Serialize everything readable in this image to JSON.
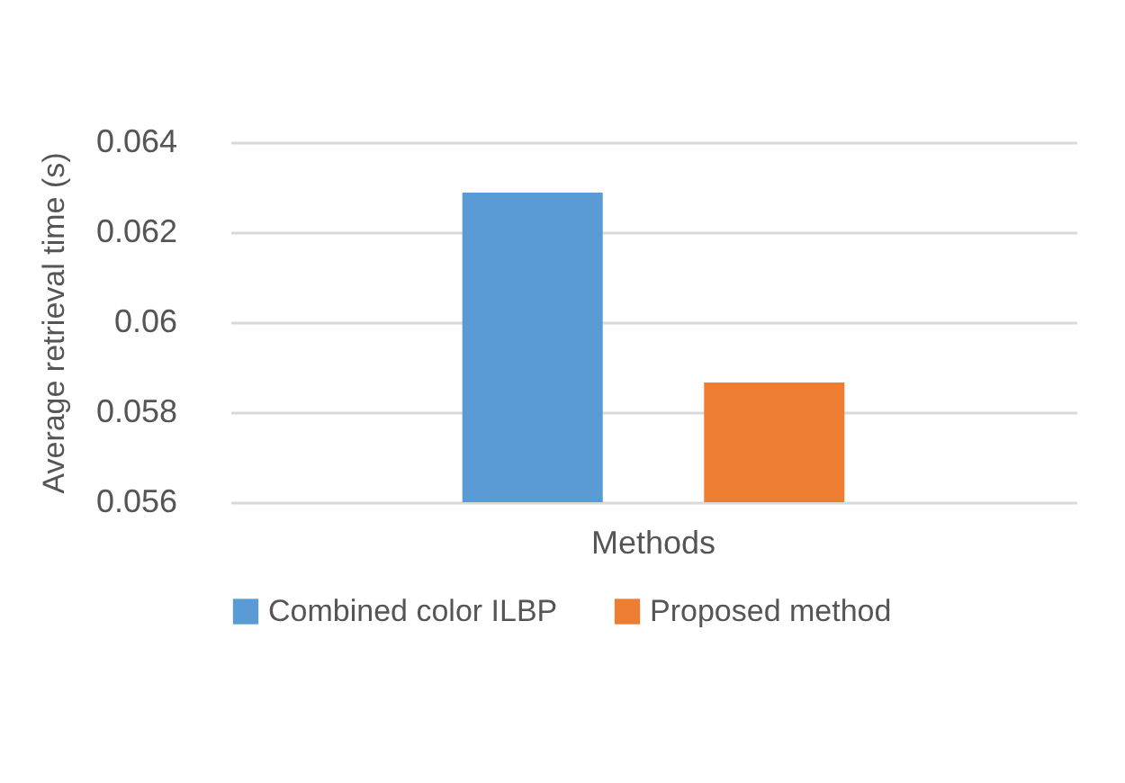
{
  "chart_data": {
    "type": "bar",
    "categories": [
      "Methods"
    ],
    "ylabel": "Average retrieval time (s)",
    "series": [
      {
        "name": "Combined color ILBP",
        "color": "#5b9bd5",
        "values": [
          0.06288
        ]
      },
      {
        "name": "Proposed method",
        "color": "#ed7d31",
        "values": [
          0.05866
        ]
      }
    ],
    "ylim": [
      0.056,
      0.064
    ],
    "yticks": [
      0.056,
      0.058,
      0.06,
      0.062,
      0.064
    ],
    "grid": "y",
    "legend": "bottom"
  }
}
